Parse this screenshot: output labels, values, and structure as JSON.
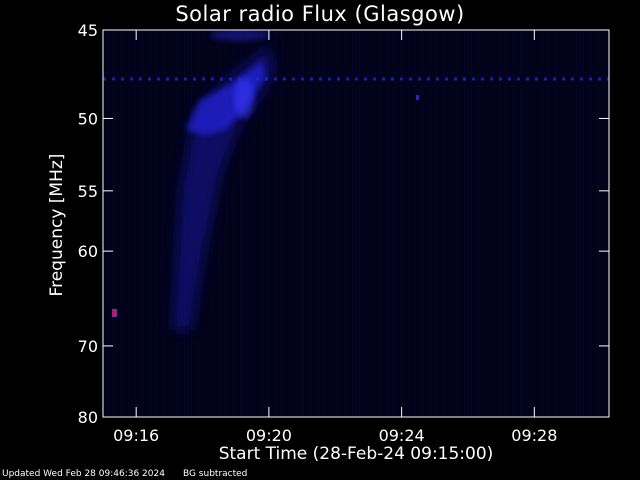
{
  "chart_data": {
    "type": "heatmap",
    "title": "Solar radio Flux (Glasgow)",
    "xlabel": "Start Time (28-Feb-24 09:15:00)",
    "ylabel": "Frequency [MHz]",
    "x_ticks": [
      "09:16",
      "09:20",
      "09:24",
      "09:28"
    ],
    "y_ticks": [
      "45",
      "50",
      "55",
      "60",
      "70",
      "80"
    ],
    "y_tick_values": [
      45,
      50,
      55,
      60,
      70,
      80
    ],
    "y_scale": "reciprocal",
    "ylim": [
      45,
      80
    ],
    "xlim": [
      "09:15:00",
      "09:30:15"
    ],
    "colors": {
      "background": "#000000",
      "plot_bg": "#02021a",
      "emission": "#2a2aff",
      "axis": "#ffffff"
    },
    "features": [
      {
        "name": "drifting burst",
        "start_time": "09:17",
        "end_time": "09:20",
        "freq_low": 71,
        "freq_high": 46
      },
      {
        "name": "narrowband interference line",
        "frequency": 49.5
      }
    ],
    "grid": false,
    "legend": "none"
  },
  "footer": {
    "updated": "Updated Wed Feb 28 09:46:36 2024",
    "note": "BG subtracted"
  }
}
